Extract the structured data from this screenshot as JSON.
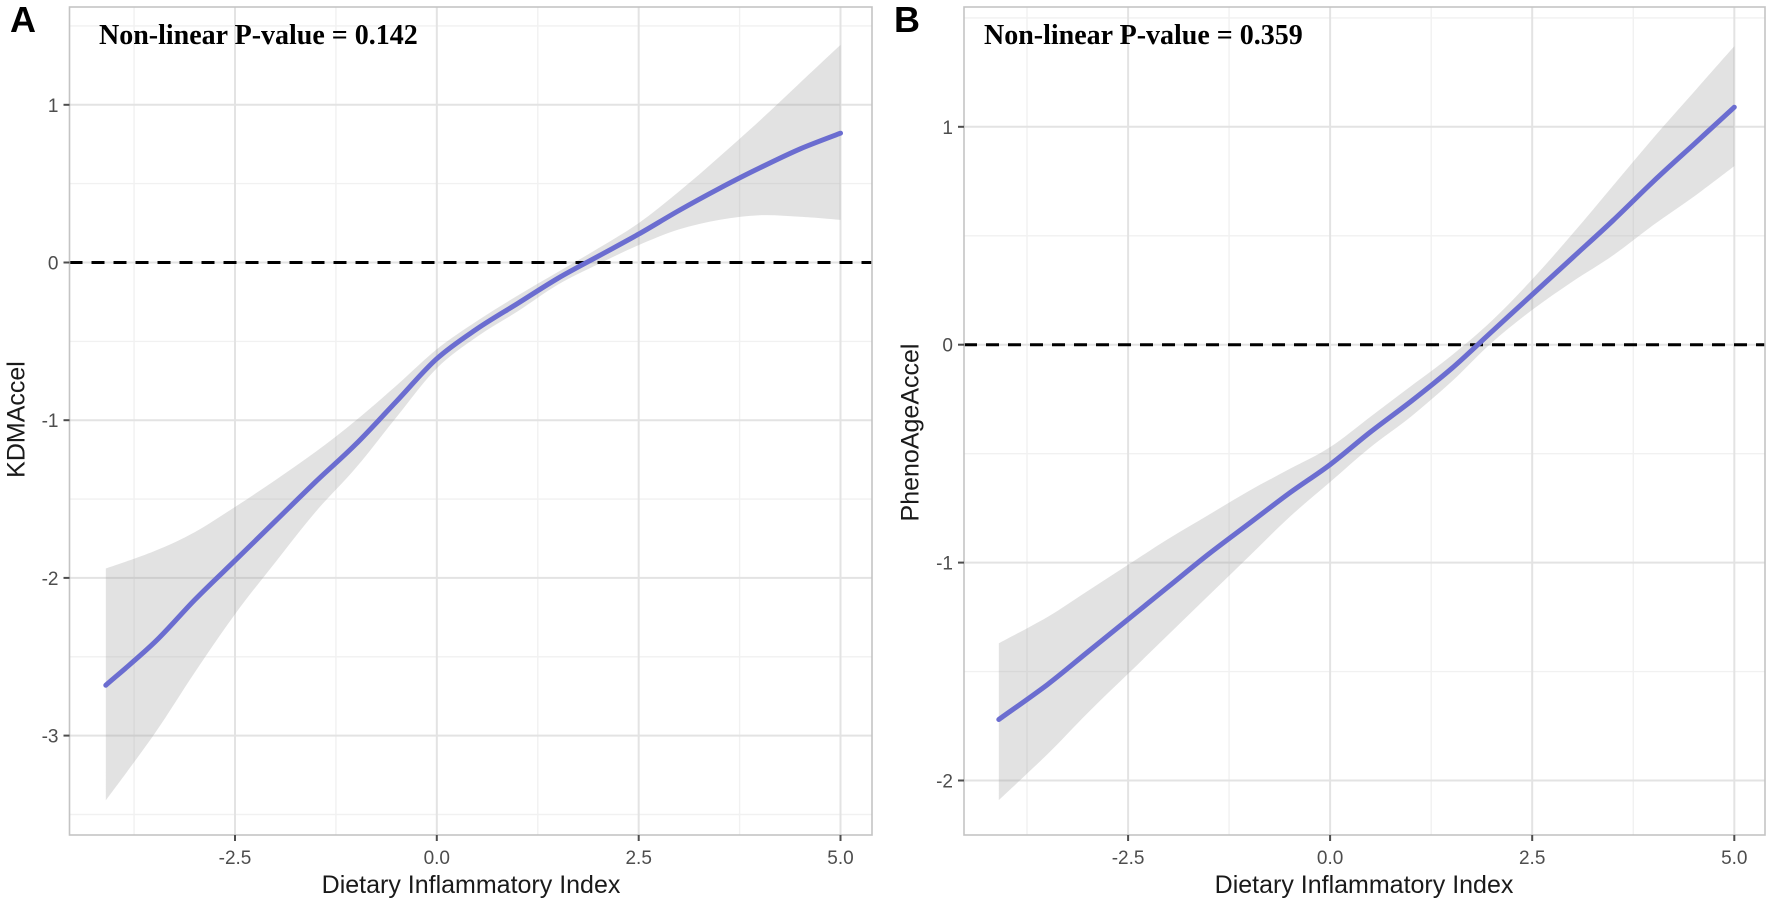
{
  "figure": {
    "background": "#ffffff",
    "panels": [
      {
        "label": "A",
        "annotation": "Non-linear P-value = 0.142",
        "y_title": "KDMAccel",
        "x_title": "Dietary Inflammatory Index"
      },
      {
        "label": "B",
        "annotation": "Non-linear P-value = 0.359",
        "y_title": "PhenoAgeAccel",
        "x_title": "Dietary Inflammatory Index"
      }
    ]
  },
  "colors": {
    "fit_line": "#6b6dd0",
    "ci_ribbon": "rgba(150,150,150,0.28)",
    "reference_line": "#000000",
    "grid_major": "#e3e3e3",
    "grid_minor": "#f1f1f1",
    "panel_border": "#c4c4c4",
    "tick_mark": "#4d4d4d",
    "tick_text": "#4d4d4d",
    "axis_title_text": "#1a1a1a"
  },
  "chart_data": [
    {
      "type": "line",
      "panel": "A",
      "title": "Non-linear P-value = 0.142",
      "xlabel": "Dietary Inflammatory Index",
      "ylabel": "KDMAccel",
      "legend": "none",
      "grid": "on",
      "xlim": [
        -4.55,
        5.39
      ],
      "ylim": [
        -3.63,
        1.62
      ],
      "x_ticks": [
        -2.5,
        0,
        2.5,
        5
      ],
      "x_tick_labels": [
        "-2.5",
        "0.0",
        "2.5",
        "5.0"
      ],
      "y_ticks": [
        1,
        0,
        -1,
        -2,
        -3
      ],
      "y_tick_labels": [
        "1",
        "0",
        "-1",
        "-2",
        "-3"
      ],
      "x_minor": [
        -3.75,
        -1.25,
        1.25,
        3.75
      ],
      "y_minor": [
        1.5,
        0.5,
        -0.5,
        -1.5,
        -2.5,
        -3.5
      ],
      "reference_y": 0,
      "zero_crossing_x": 1.85,
      "x": [
        -4.1,
        -3.5,
        -3,
        -2.5,
        -2,
        -1.5,
        -1,
        -0.5,
        0,
        0.5,
        1,
        1.5,
        2,
        2.5,
        3,
        3.5,
        4,
        4.5,
        5
      ],
      "fit": [
        -2.68,
        -2.41,
        -2.14,
        -1.89,
        -1.64,
        -1.39,
        -1.15,
        -0.88,
        -0.61,
        -0.42,
        -0.26,
        -0.1,
        0.04,
        0.18,
        0.33,
        0.47,
        0.6,
        0.72,
        0.82
      ],
      "ci_upper": [
        -1.94,
        -1.83,
        -1.71,
        -1.55,
        -1.38,
        -1.2,
        -1.0,
        -0.78,
        -0.55,
        -0.37,
        -0.21,
        -0.06,
        0.09,
        0.25,
        0.45,
        0.67,
        0.9,
        1.14,
        1.38
      ],
      "ci_lower": [
        -3.41,
        -2.99,
        -2.6,
        -2.23,
        -1.9,
        -1.58,
        -1.3,
        -0.98,
        -0.67,
        -0.47,
        -0.31,
        -0.14,
        -0.01,
        0.11,
        0.21,
        0.27,
        0.3,
        0.29,
        0.27
      ]
    },
    {
      "type": "line",
      "panel": "B",
      "title": "Non-linear P-value = 0.359",
      "xlabel": "Dietary Inflammatory Index",
      "ylabel": "PhenoAgeAccel",
      "legend": "none",
      "grid": "on",
      "xlim": [
        -4.53,
        5.38
      ],
      "ylim": [
        -2.25,
        1.55
      ],
      "x_ticks": [
        -2.5,
        0,
        2.5,
        5
      ],
      "x_tick_labels": [
        "-2.5",
        "0.0",
        "2.5",
        "5.0"
      ],
      "y_ticks": [
        1,
        0,
        -1,
        -2
      ],
      "y_tick_labels": [
        "1",
        "0",
        "-1",
        "-2"
      ],
      "x_minor": [
        -3.75,
        -1.25,
        1.25,
        3.75
      ],
      "y_minor": [
        1.5,
        0.5,
        -0.5,
        -1.5
      ],
      "reference_y": 0,
      "zero_crossing_x": 1.82,
      "x": [
        -4.1,
        -3.5,
        -3,
        -2.5,
        -2,
        -1.5,
        -1,
        -0.5,
        0,
        0.5,
        1,
        1.5,
        2,
        2.5,
        3,
        3.5,
        4,
        4.5,
        5
      ],
      "fit": [
        -1.72,
        -1.56,
        -1.41,
        -1.26,
        -1.11,
        -0.96,
        -0.82,
        -0.68,
        -0.55,
        -0.4,
        -0.26,
        -0.11,
        0.06,
        0.23,
        0.4,
        0.57,
        0.75,
        0.92,
        1.09
      ],
      "ci_upper": [
        -1.37,
        -1.25,
        -1.13,
        -1.01,
        -0.89,
        -0.78,
        -0.67,
        -0.57,
        -0.47,
        -0.33,
        -0.19,
        -0.05,
        0.11,
        0.3,
        0.51,
        0.73,
        0.95,
        1.16,
        1.37
      ],
      "ci_lower": [
        -2.09,
        -1.88,
        -1.69,
        -1.51,
        -1.33,
        -1.15,
        -0.97,
        -0.79,
        -0.63,
        -0.47,
        -0.33,
        -0.17,
        0.01,
        0.16,
        0.29,
        0.41,
        0.55,
        0.68,
        0.82
      ]
    }
  ]
}
